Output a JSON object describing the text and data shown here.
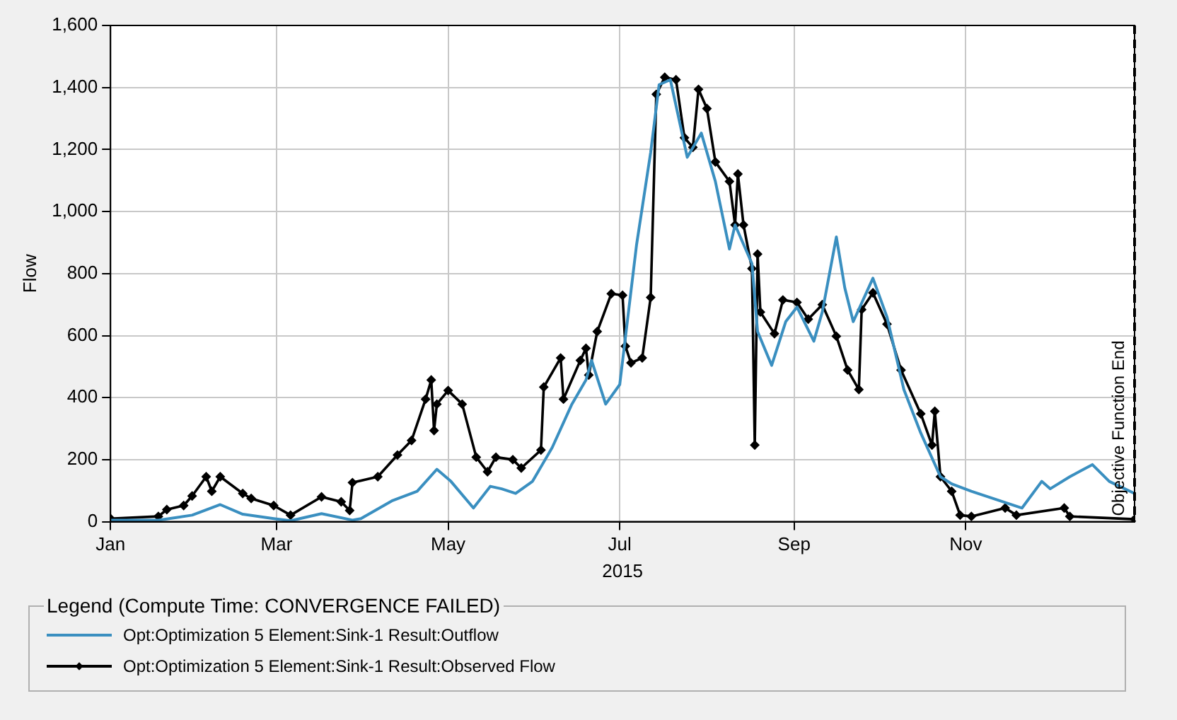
{
  "chart_data": {
    "type": "line",
    "xlabel": "2015",
    "ylabel": "Flow",
    "legend_title": "Legend (Compute Time: CONVERGENCE FAILED)",
    "legend": "bottom",
    "grid": true,
    "line_style": "solid",
    "xlim": [
      "2015-01-01",
      "2015-12-31"
    ],
    "xticks": [
      {
        "value": "2015-01-01",
        "label": "Jan"
      },
      {
        "value": "2015-03-01",
        "label": "Mar"
      },
      {
        "value": "2015-05-01",
        "label": "May"
      },
      {
        "value": "2015-07-01",
        "label": "Jul"
      },
      {
        "value": "2015-09-01",
        "label": "Sep"
      },
      {
        "value": "2015-11-01",
        "label": "Nov"
      }
    ],
    "ylim": [
      0,
      1600
    ],
    "yticks": [
      0,
      200,
      400,
      600,
      800,
      {
        "value": 1000,
        "label": "1,000"
      },
      {
        "value": 1200,
        "label": "1,200"
      },
      {
        "value": 1400,
        "label": "1,400"
      },
      {
        "value": 1600,
        "label": "1,600"
      }
    ],
    "ref_lines": [
      {
        "axis": "x",
        "value": "2015-12-31",
        "label": "Objective Function End",
        "line_style": "dashed",
        "color": "#000000"
      }
    ],
    "series": [
      {
        "name": "Opt:Optimization 5 Element:Sink-1 Result:Outflow",
        "color": "#3a8fc0",
        "marker": "none",
        "x": [
          "2015-01-01",
          "2015-01-18",
          "2015-01-30",
          "2015-02-09",
          "2015-02-17",
          "2015-02-28",
          "2015-03-06",
          "2015-03-17",
          "2015-03-28",
          "2015-03-31",
          "2015-04-11",
          "2015-04-20",
          "2015-04-27",
          "2015-05-02",
          "2015-05-10",
          "2015-05-16",
          "2015-05-20",
          "2015-05-25",
          "2015-05-31",
          "2015-06-07",
          "2015-06-14",
          "2015-06-19",
          "2015-06-21",
          "2015-06-26",
          "2015-07-01",
          "2015-07-07",
          "2015-07-12",
          "2015-07-15",
          "2015-07-19",
          "2015-07-25",
          "2015-07-30",
          "2015-08-04",
          "2015-08-09",
          "2015-08-11",
          "2015-08-17",
          "2015-08-19",
          "2015-08-24",
          "2015-08-29",
          "2015-09-02",
          "2015-09-08",
          "2015-09-11",
          "2015-09-16",
          "2015-09-19",
          "2015-09-22",
          "2015-09-29",
          "2015-10-04",
          "2015-10-10",
          "2015-10-16",
          "2015-10-23",
          "2015-10-27",
          "2015-11-03",
          "2015-11-21",
          "2015-11-28",
          "2015-12-01",
          "2015-12-08",
          "2015-12-16",
          "2015-12-22",
          "2015-12-31"
        ],
        "values": [
          5,
          5,
          21,
          55,
          24,
          10,
          3,
          26,
          5,
          10,
          67,
          98,
          169,
          130,
          44,
          114,
          106,
          91,
          130,
          239,
          379,
          457,
          520,
          379,
          442,
          894,
          1191,
          1409,
          1425,
          1175,
          1253,
          1097,
          879,
          957,
          832,
          613,
          504,
          645,
          692,
          582,
          676,
          918,
          754,
          645,
          785,
          660,
          426,
          286,
          145,
          122,
          98,
          44,
          130,
          106,
          145,
          184,
          130,
          91
        ]
      },
      {
        "name": "Opt:Optimization 5 Element:Sink-1 Result:Observed Flow",
        "color": "#000000",
        "marker": "diamond",
        "x": [
          "2015-01-01",
          "2015-01-18",
          "2015-01-21",
          "2015-01-27",
          "2015-01-30",
          "2015-02-04",
          "2015-02-06",
          "2015-02-09",
          "2015-02-17",
          "2015-02-20",
          "2015-02-28",
          "2015-03-06",
          "2015-03-17",
          "2015-03-24",
          "2015-03-27",
          "2015-03-28",
          "2015-04-06",
          "2015-04-13",
          "2015-04-18",
          "2015-04-23",
          "2015-04-25",
          "2015-04-26",
          "2015-04-27",
          "2015-05-01",
          "2015-05-06",
          "2015-05-11",
          "2015-05-15",
          "2015-05-18",
          "2015-05-24",
          "2015-05-27",
          "2015-06-03",
          "2015-06-04",
          "2015-06-10",
          "2015-06-11",
          "2015-06-17",
          "2015-06-19",
          "2015-06-20",
          "2015-06-23",
          "2015-06-28",
          "2015-07-02",
          "2015-07-03",
          "2015-07-05",
          "2015-07-09",
          "2015-07-12",
          "2015-07-14",
          "2015-07-17",
          "2015-07-21",
          "2015-07-24",
          "2015-07-27",
          "2015-07-29",
          "2015-08-01",
          "2015-08-04",
          "2015-08-09",
          "2015-08-11",
          "2015-08-12",
          "2015-08-14",
          "2015-08-17",
          "2015-08-18",
          "2015-08-19",
          "2015-08-20",
          "2015-08-25",
          "2015-08-28",
          "2015-09-02",
          "2015-09-06",
          "2015-09-11",
          "2015-09-16",
          "2015-09-20",
          "2015-09-24",
          "2015-09-25",
          "2015-09-29",
          "2015-10-04",
          "2015-10-09",
          "2015-10-16",
          "2015-10-20",
          "2015-10-21",
          "2015-10-23",
          "2015-10-27",
          "2015-10-30",
          "2015-11-03",
          "2015-11-15",
          "2015-11-19",
          "2015-12-06",
          "2015-12-08",
          "2015-12-31"
        ],
        "values": [
          10,
          17,
          39,
          52,
          83,
          145,
          98,
          145,
          91,
          75,
          52,
          21,
          80,
          64,
          36,
          126,
          145,
          215,
          262,
          395,
          457,
          294,
          379,
          423,
          379,
          208,
          161,
          208,
          200,
          173,
          231,
          434,
          528,
          395,
          520,
          559,
          473,
          613,
          735,
          730,
          566,
          512,
          528,
          723,
          1378,
          1433,
          1425,
          1238,
          1207,
          1394,
          1332,
          1160,
          1097,
          957,
          1121,
          957,
          816,
          247,
          863,
          676,
          606,
          715,
          707,
          653,
          700,
          598,
          489,
          426,
          684,
          738,
          637,
          489,
          348,
          247,
          356,
          145,
          98,
          21,
          17,
          44,
          21,
          44,
          17,
          8
        ]
      }
    ]
  }
}
